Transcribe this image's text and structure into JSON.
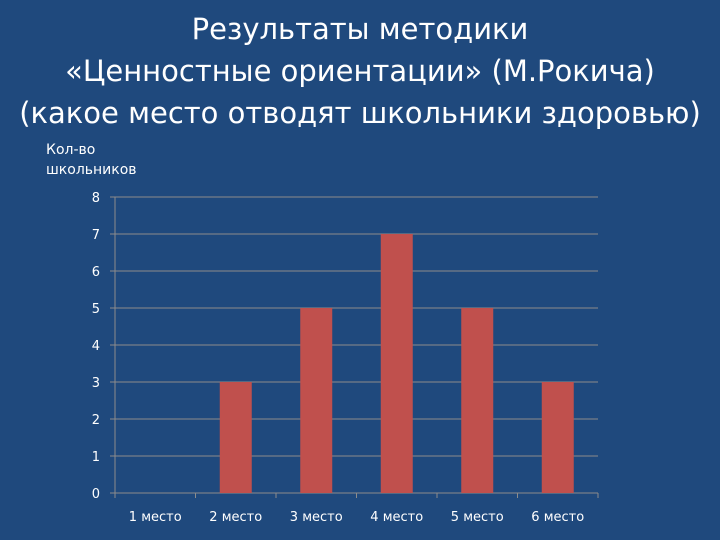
{
  "slide": {
    "background": "#1f497d",
    "title_lines": [
      "Результаты методики",
      "«Ценностные ориентации» (М.Рокича)",
      "(какое место отводят школьники здоровью)"
    ]
  },
  "chart_data": {
    "type": "bar",
    "title": "",
    "xlabel": "",
    "ylabel_lines": [
      "Кол-во",
      "школьников"
    ],
    "categories": [
      "1 место",
      "2 место",
      "3 место",
      "4 место",
      "5 место",
      "6 место"
    ],
    "values": [
      0,
      3,
      5,
      7,
      5,
      3
    ],
    "ylim": [
      0,
      8
    ],
    "yticks": [
      0,
      1,
      2,
      3,
      4,
      5,
      6,
      7,
      8
    ],
    "grid": true,
    "legend": "none",
    "bar_color": "#c0504d",
    "grid_color": "#8c8c8c"
  }
}
